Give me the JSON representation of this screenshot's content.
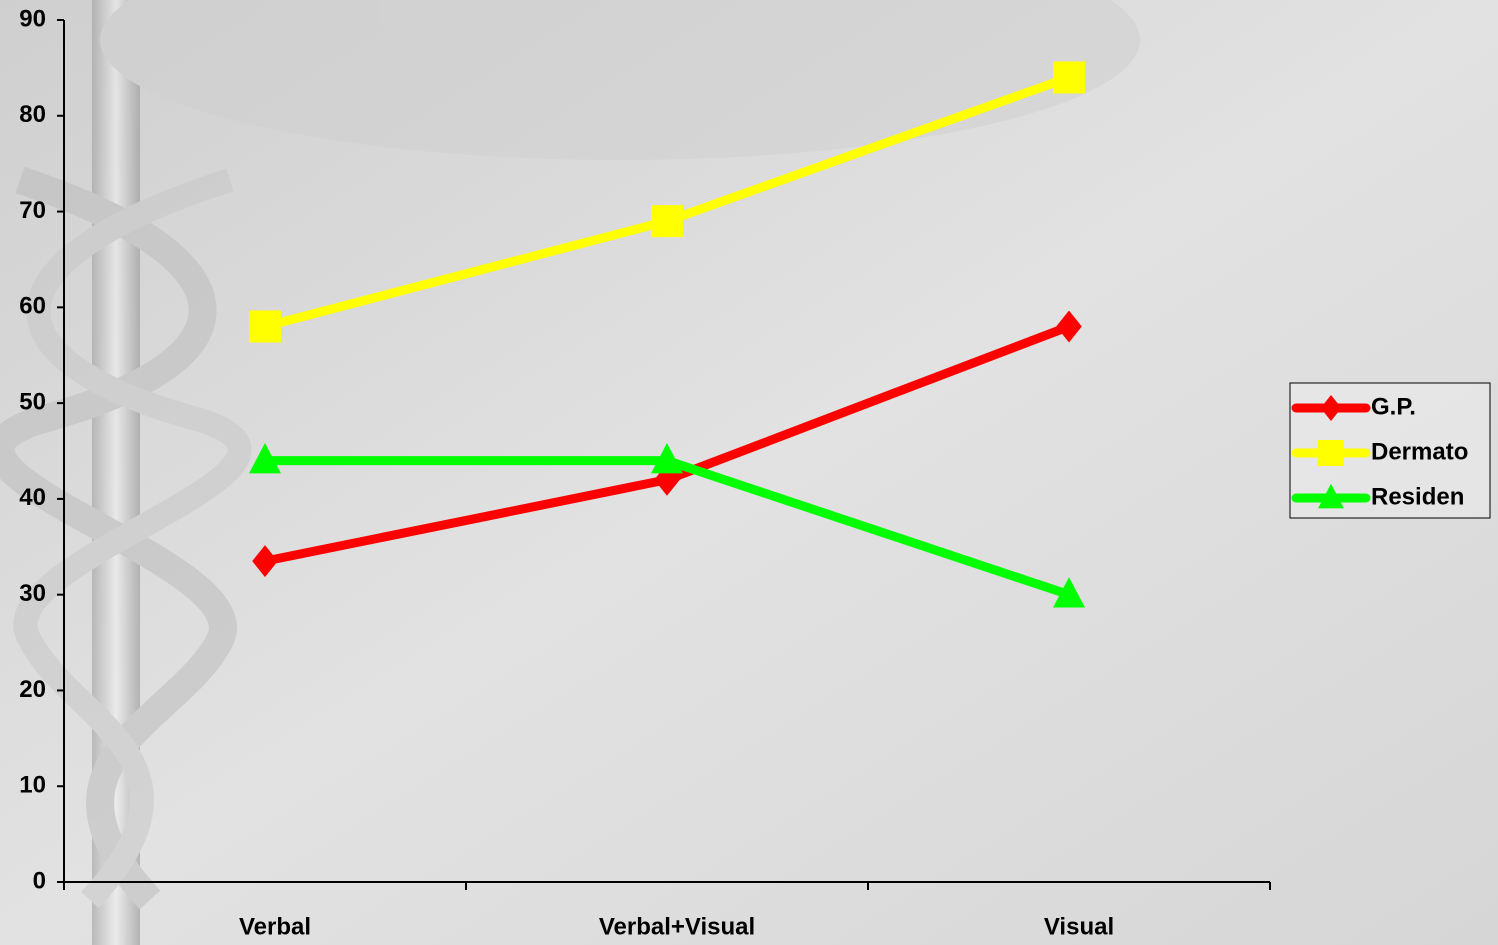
{
  "chart_data": {
    "type": "line",
    "categories": [
      "Verbal",
      "Verbal+Visual",
      "Visual"
    ],
    "series": [
      {
        "name": "G.P.",
        "color": "#ff0000",
        "marker": "diamond",
        "values": [
          33.5,
          42,
          58
        ]
      },
      {
        "name": "Dermato",
        "color": "#ffff00",
        "marker": "square",
        "values": [
          58,
          69,
          84
        ]
      },
      {
        "name": "Residen",
        "color": "#00ff00",
        "marker": "triangle",
        "values": [
          44,
          44,
          30
        ]
      }
    ],
    "ylim": [
      0,
      90
    ],
    "yticks": [
      0,
      10,
      20,
      30,
      40,
      50,
      60,
      70,
      80,
      90
    ],
    "grid": false,
    "legend": "right"
  }
}
